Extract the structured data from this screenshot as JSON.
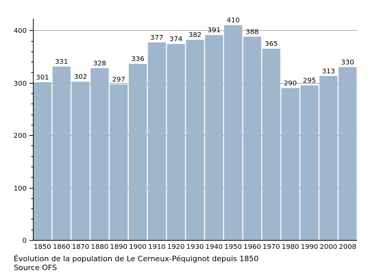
{
  "chart_data": {
    "type": "bar",
    "categories": [
      "1850",
      "1860",
      "1870",
      "1880",
      "1890",
      "1900",
      "1910",
      "1920",
      "1930",
      "1940",
      "1950",
      "1960",
      "1970",
      "1980",
      "1990",
      "2000",
      "2008"
    ],
    "values": [
      301,
      331,
      302,
      328,
      297,
      336,
      377,
      374,
      382,
      391,
      410,
      388,
      365,
      290,
      295,
      313,
      330
    ],
    "ylim": [
      0,
      420
    ],
    "yticks": [
      0,
      100,
      200,
      300,
      400
    ],
    "grid": true,
    "bar_color": "#9fb6cd",
    "grid_color": "#aaaaaa",
    "title": "",
    "xlabel": "",
    "ylabel": ""
  },
  "caption": {
    "line1": "Évolution de la population de Le Cerneux-Péquignot depuis 1850",
    "line2": "Source OFS"
  }
}
